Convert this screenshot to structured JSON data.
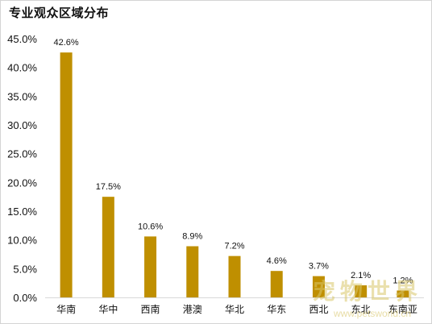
{
  "chart_data": {
    "type": "bar",
    "title": "专业观众区域分布",
    "xlabel": "",
    "ylabel": "",
    "ylim": [
      0,
      45
    ],
    "yticks": [
      "0.0%",
      "5.0%",
      "10.0%",
      "15.0%",
      "20.0%",
      "25.0%",
      "30.0%",
      "35.0%",
      "40.0%",
      "45.0%"
    ],
    "categories": [
      "华南",
      "华中",
      "西南",
      "港澳",
      "华北",
      "华东",
      "西北",
      "东北",
      "东南亚"
    ],
    "values": [
      42.6,
      17.5,
      10.6,
      8.9,
      7.2,
      4.6,
      3.7,
      2.1,
      1.2
    ],
    "data_labels": [
      "42.6%",
      "17.5%",
      "10.6%",
      "8.9%",
      "7.2%",
      "4.6%",
      "3.7%",
      "2.1%",
      "1.2%"
    ],
    "grid": false,
    "legend": "none",
    "bar_color": "#bf8f00"
  },
  "watermark": {
    "text": "宠物世界",
    "url": "www.petsworld.cn"
  }
}
